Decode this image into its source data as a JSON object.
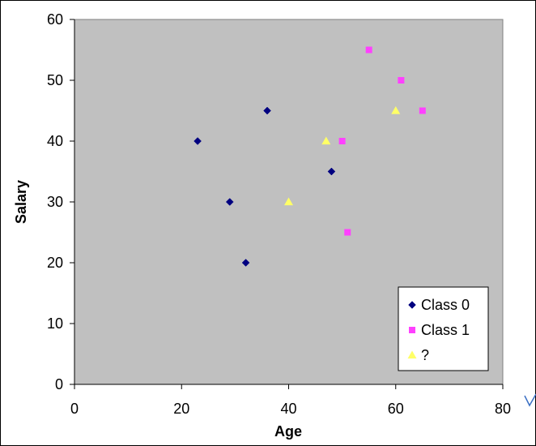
{
  "chart_data": {
    "type": "scatter",
    "xlabel": "Age",
    "ylabel": "Salary",
    "xlim": [
      0,
      80
    ],
    "ylim": [
      0,
      60
    ],
    "xticks": [
      0,
      20,
      40,
      60,
      80
    ],
    "yticks": [
      0,
      10,
      20,
      30,
      40,
      50,
      60
    ],
    "grid": false,
    "legend_position": "bottom-right",
    "plot_background": "#c0c0c0",
    "series": [
      {
        "name": "Class 0",
        "marker": "diamond",
        "color": "#000080",
        "points": [
          [
            23,
            40
          ],
          [
            29,
            30
          ],
          [
            32,
            20
          ],
          [
            36,
            45
          ],
          [
            48,
            35
          ]
        ]
      },
      {
        "name": "Class 1",
        "marker": "square",
        "color": "#ff40ff",
        "points": [
          [
            50,
            40
          ],
          [
            51,
            25
          ],
          [
            55,
            55
          ],
          [
            61,
            50
          ],
          [
            65,
            45
          ]
        ]
      },
      {
        "name": "?",
        "marker": "triangle",
        "color": "#ffff66",
        "points": [
          [
            40,
            30
          ],
          [
            47,
            40
          ],
          [
            60,
            45
          ]
        ]
      }
    ]
  }
}
